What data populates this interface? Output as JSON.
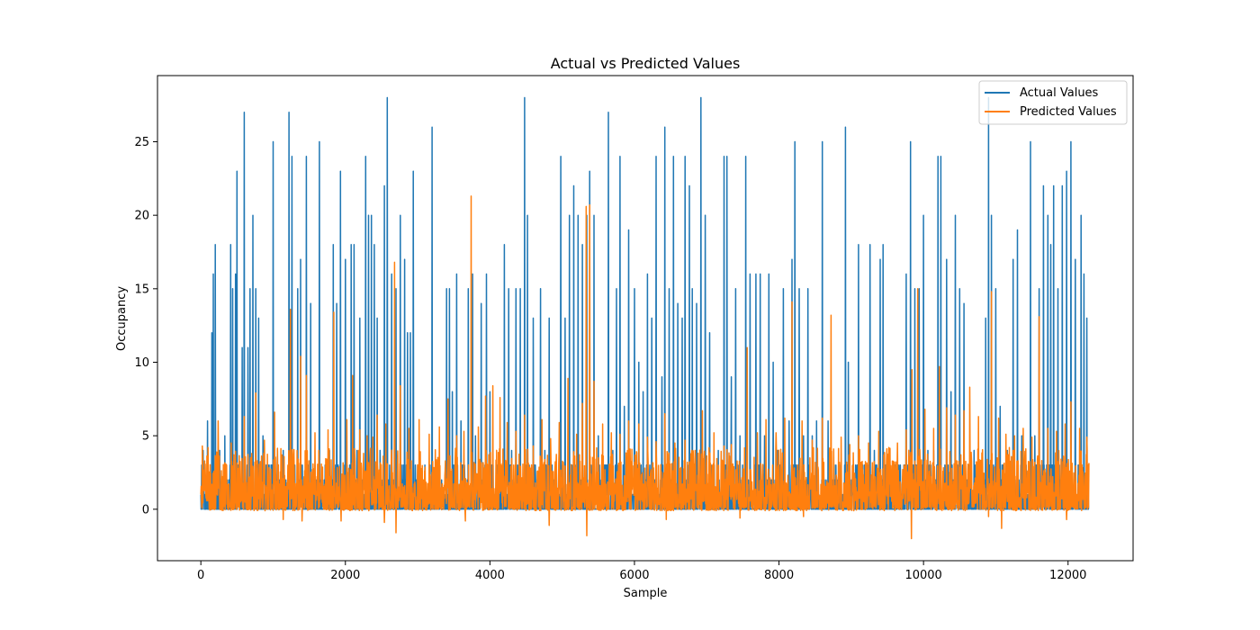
{
  "chart_data": {
    "type": "line",
    "title": "Actual vs Predicted Values",
    "xlabel": "Sample",
    "ylabel": "Occupancy",
    "xlim": [
      -600,
      12900
    ],
    "ylim": [
      -3.5,
      29.5
    ],
    "xticks": [
      0,
      2000,
      4000,
      6000,
      8000,
      10000,
      12000
    ],
    "yticks": [
      0,
      5,
      10,
      15,
      20,
      25
    ],
    "grid": false,
    "legend_position": "top-right",
    "n_samples": 12290,
    "series": [
      {
        "name": "Actual Values",
        "color": "#1f77b4",
        "spikes": [
          [
            30,
            4
          ],
          [
            90,
            6
          ],
          [
            150,
            12
          ],
          [
            170,
            16
          ],
          [
            200,
            18
          ],
          [
            260,
            4
          ],
          [
            330,
            5
          ],
          [
            410,
            18
          ],
          [
            440,
            15
          ],
          [
            480,
            16
          ],
          [
            500,
            23
          ],
          [
            530,
            3
          ],
          [
            570,
            11
          ],
          [
            600,
            27
          ],
          [
            650,
            11
          ],
          [
            680,
            15
          ],
          [
            720,
            20
          ],
          [
            760,
            15
          ],
          [
            800,
            13
          ],
          [
            860,
            5
          ],
          [
            1000,
            25
          ],
          [
            1060,
            4
          ],
          [
            1140,
            4
          ],
          [
            1220,
            27
          ],
          [
            1260,
            24
          ],
          [
            1340,
            15
          ],
          [
            1380,
            17
          ],
          [
            1460,
            24
          ],
          [
            1520,
            14
          ],
          [
            1580,
            3
          ],
          [
            1640,
            25
          ],
          [
            1720,
            3
          ],
          [
            1780,
            4
          ],
          [
            1830,
            18
          ],
          [
            1880,
            14
          ],
          [
            1930,
            23
          ],
          [
            2000,
            17
          ],
          [
            2080,
            18
          ],
          [
            2120,
            18
          ],
          [
            2160,
            4
          ],
          [
            2200,
            13
          ],
          [
            2280,
            24
          ],
          [
            2320,
            20
          ],
          [
            2360,
            20
          ],
          [
            2400,
            18
          ],
          [
            2440,
            13
          ],
          [
            2480,
            4
          ],
          [
            2540,
            22
          ],
          [
            2580,
            28
          ],
          [
            2640,
            16
          ],
          [
            2700,
            15
          ],
          [
            2760,
            20
          ],
          [
            2820,
            17
          ],
          [
            2860,
            12
          ],
          [
            2900,
            12
          ],
          [
            2940,
            23
          ],
          [
            3000,
            3
          ],
          [
            3100,
            3
          ],
          [
            3200,
            26
          ],
          [
            3300,
            3
          ],
          [
            3400,
            15
          ],
          [
            3440,
            15
          ],
          [
            3480,
            8
          ],
          [
            3540,
            16
          ],
          [
            3600,
            6
          ],
          [
            3700,
            15
          ],
          [
            3760,
            16
          ],
          [
            3800,
            5
          ],
          [
            3880,
            14
          ],
          [
            3950,
            16
          ],
          [
            4000,
            8
          ],
          [
            4100,
            3
          ],
          [
            4200,
            18
          ],
          [
            4260,
            15
          ],
          [
            4300,
            4
          ],
          [
            4360,
            15
          ],
          [
            4420,
            15
          ],
          [
            4480,
            28
          ],
          [
            4520,
            20
          ],
          [
            4600,
            13
          ],
          [
            4700,
            15
          ],
          [
            4760,
            4
          ],
          [
            4820,
            13
          ],
          [
            4920,
            3
          ],
          [
            4980,
            24
          ],
          [
            5040,
            13
          ],
          [
            5100,
            20
          ],
          [
            5160,
            22
          ],
          [
            5220,
            20
          ],
          [
            5280,
            18
          ],
          [
            5340,
            20
          ],
          [
            5380,
            23
          ],
          [
            5440,
            20
          ],
          [
            5500,
            5
          ],
          [
            5560,
            3
          ],
          [
            5640,
            27
          ],
          [
            5700,
            4
          ],
          [
            5750,
            15
          ],
          [
            5800,
            24
          ],
          [
            5860,
            7
          ],
          [
            5920,
            19
          ],
          [
            6000,
            15
          ],
          [
            6060,
            10
          ],
          [
            6120,
            8
          ],
          [
            6180,
            16
          ],
          [
            6240,
            13
          ],
          [
            6300,
            24
          ],
          [
            6380,
            9
          ],
          [
            6420,
            26
          ],
          [
            6480,
            15
          ],
          [
            6540,
            24
          ],
          [
            6600,
            14
          ],
          [
            6660,
            13
          ],
          [
            6700,
            24
          ],
          [
            6760,
            22
          ],
          [
            6800,
            15
          ],
          [
            6860,
            14
          ],
          [
            6920,
            28
          ],
          [
            6980,
            20
          ],
          [
            7040,
            12
          ],
          [
            7100,
            3
          ],
          [
            7160,
            4
          ],
          [
            7240,
            24
          ],
          [
            7280,
            24
          ],
          [
            7340,
            9
          ],
          [
            7400,
            15
          ],
          [
            7460,
            5
          ],
          [
            7540,
            24
          ],
          [
            7600,
            16
          ],
          [
            7680,
            16
          ],
          [
            7740,
            16
          ],
          [
            7800,
            5
          ],
          [
            7860,
            16
          ],
          [
            7920,
            10
          ],
          [
            7980,
            4
          ],
          [
            8060,
            15
          ],
          [
            8140,
            6
          ],
          [
            8180,
            17
          ],
          [
            8220,
            25
          ],
          [
            8280,
            15
          ],
          [
            8340,
            5
          ],
          [
            8400,
            15
          ],
          [
            8460,
            5
          ],
          [
            8520,
            6
          ],
          [
            8600,
            25
          ],
          [
            8680,
            6
          ],
          [
            8760,
            3
          ],
          [
            8840,
            3
          ],
          [
            8920,
            26
          ],
          [
            8960,
            10
          ],
          [
            9020,
            3
          ],
          [
            9100,
            18
          ],
          [
            9160,
            3
          ],
          [
            9260,
            18
          ],
          [
            9320,
            4
          ],
          [
            9400,
            17
          ],
          [
            9440,
            18
          ],
          [
            9520,
            3
          ],
          [
            9600,
            3
          ],
          [
            9680,
            3
          ],
          [
            9760,
            16
          ],
          [
            9820,
            25
          ],
          [
            9880,
            15
          ],
          [
            9940,
            15
          ],
          [
            10000,
            20
          ],
          [
            10060,
            4
          ],
          [
            10140,
            4
          ],
          [
            10200,
            24
          ],
          [
            10240,
            24
          ],
          [
            10320,
            17
          ],
          [
            10380,
            8
          ],
          [
            10440,
            20
          ],
          [
            10500,
            15
          ],
          [
            10560,
            14
          ],
          [
            10620,
            3
          ],
          [
            10700,
            4
          ],
          [
            10780,
            3
          ],
          [
            10860,
            13
          ],
          [
            10900,
            28
          ],
          [
            10940,
            20
          ],
          [
            11000,
            15
          ],
          [
            11060,
            7
          ],
          [
            11100,
            3
          ],
          [
            11160,
            4
          ],
          [
            11240,
            17
          ],
          [
            11300,
            19
          ],
          [
            11360,
            5
          ],
          [
            11420,
            3
          ],
          [
            11480,
            25
          ],
          [
            11540,
            5
          ],
          [
            11600,
            15
          ],
          [
            11660,
            22
          ],
          [
            11720,
            20
          ],
          [
            11760,
            18
          ],
          [
            11800,
            22
          ],
          [
            11860,
            15
          ],
          [
            11920,
            22
          ],
          [
            11980,
            23
          ],
          [
            12040,
            25
          ],
          [
            12100,
            17
          ],
          [
            12140,
            3
          ],
          [
            12180,
            20
          ],
          [
            12220,
            16
          ],
          [
            12260,
            13
          ]
        ]
      },
      {
        "name": "Predicted Values",
        "color": "#ff7f0e",
        "spikes": [
          [
            20,
            4.3
          ],
          [
            100,
            4.2
          ],
          [
            240,
            6.0
          ],
          [
            420,
            4.5
          ],
          [
            600,
            6.3
          ],
          [
            760,
            7.9
          ],
          [
            880,
            4.7
          ],
          [
            1020,
            6.6
          ],
          [
            1140,
            4.2
          ],
          [
            1240,
            13.6
          ],
          [
            1380,
            10.4
          ],
          [
            1460,
            9.1
          ],
          [
            1580,
            5.2
          ],
          [
            1760,
            5.4
          ],
          [
            1840,
            13.4
          ],
          [
            1940,
            15.8
          ],
          [
            2020,
            6.1
          ],
          [
            2100,
            9.1
          ],
          [
            2200,
            5.4
          ],
          [
            2300,
            5.0
          ],
          [
            2380,
            4.9
          ],
          [
            2440,
            6.4
          ],
          [
            2560,
            5.8
          ],
          [
            2680,
            16.8
          ],
          [
            2760,
            8.4
          ],
          [
            2880,
            5.5
          ],
          [
            3020,
            6.1
          ],
          [
            3160,
            5.1
          ],
          [
            3300,
            5.6
          ],
          [
            3420,
            7.5
          ],
          [
            3540,
            5.0
          ],
          [
            3640,
            5.3
          ],
          [
            3740,
            21.3
          ],
          [
            3840,
            5.6
          ],
          [
            3940,
            7.7
          ],
          [
            4040,
            8.4
          ],
          [
            4140,
            7.6
          ],
          [
            4240,
            5.9
          ],
          [
            4360,
            5.3
          ],
          [
            4480,
            6.4
          ],
          [
            4600,
            4.3
          ],
          [
            4720,
            6.1
          ],
          [
            4840,
            4.8
          ],
          [
            4960,
            5.9
          ],
          [
            5080,
            8.9
          ],
          [
            5200,
            5.1
          ],
          [
            5280,
            7.2
          ],
          [
            5330,
            20.6
          ],
          [
            5380,
            20.7
          ],
          [
            5440,
            8.7
          ],
          [
            5560,
            5.8
          ],
          [
            5680,
            5.2
          ],
          [
            5800,
            5.1
          ],
          [
            5920,
            6.0
          ],
          [
            6060,
            5.8
          ],
          [
            6180,
            4.9
          ],
          [
            6300,
            4.6
          ],
          [
            6420,
            6.5
          ],
          [
            6560,
            4.5
          ],
          [
            6700,
            4.7
          ],
          [
            6840,
            4.0
          ],
          [
            6940,
            6.7
          ],
          [
            7100,
            5.2
          ],
          [
            7240,
            4.3
          ],
          [
            7340,
            4.4
          ],
          [
            7460,
            4.6
          ],
          [
            7560,
            11.0
          ],
          [
            7700,
            5.2
          ],
          [
            7820,
            6.1
          ],
          [
            7960,
            5.2
          ],
          [
            8080,
            6.2
          ],
          [
            8180,
            14.1
          ],
          [
            8320,
            6.0
          ],
          [
            8460,
            4.7
          ],
          [
            8600,
            6.2
          ],
          [
            8720,
            13.2
          ],
          [
            8860,
            4.9
          ],
          [
            8980,
            4.4
          ],
          [
            9100,
            5.0
          ],
          [
            9240,
            4.5
          ],
          [
            9380,
            5.3
          ],
          [
            9520,
            4.2
          ],
          [
            9640,
            4.5
          ],
          [
            9760,
            5.4
          ],
          [
            9840,
            9.5
          ],
          [
            9920,
            15.0
          ],
          [
            10020,
            6.8
          ],
          [
            10140,
            5.5
          ],
          [
            10220,
            9.7
          ],
          [
            10320,
            6.9
          ],
          [
            10440,
            6.4
          ],
          [
            10560,
            6.7
          ],
          [
            10640,
            8.3
          ],
          [
            10760,
            6.3
          ],
          [
            10900,
            7.0
          ],
          [
            10940,
            14.8
          ],
          [
            11040,
            6.2
          ],
          [
            11140,
            5.1
          ],
          [
            11260,
            5.0
          ],
          [
            11380,
            5.5
          ],
          [
            11500,
            4.9
          ],
          [
            11600,
            13.1
          ],
          [
            11720,
            5.5
          ],
          [
            11840,
            5.3
          ],
          [
            11960,
            5.8
          ],
          [
            12040,
            7.3
          ],
          [
            12160,
            5.5
          ],
          [
            12260,
            4.9
          ]
        ],
        "dips": [
          [
            1140,
            -0.7
          ],
          [
            1400,
            -0.8
          ],
          [
            1940,
            -0.8
          ],
          [
            2540,
            -0.9
          ],
          [
            2700,
            -1.6
          ],
          [
            3660,
            -0.8
          ],
          [
            4820,
            -1.1
          ],
          [
            5340,
            -1.8
          ],
          [
            6440,
            -0.7
          ],
          [
            7460,
            -0.6
          ],
          [
            8340,
            -0.5
          ],
          [
            9830,
            -2.0
          ],
          [
            10900,
            -0.5
          ],
          [
            11080,
            -1.3
          ],
          [
            11980,
            -0.7
          ]
        ]
      }
    ]
  }
}
